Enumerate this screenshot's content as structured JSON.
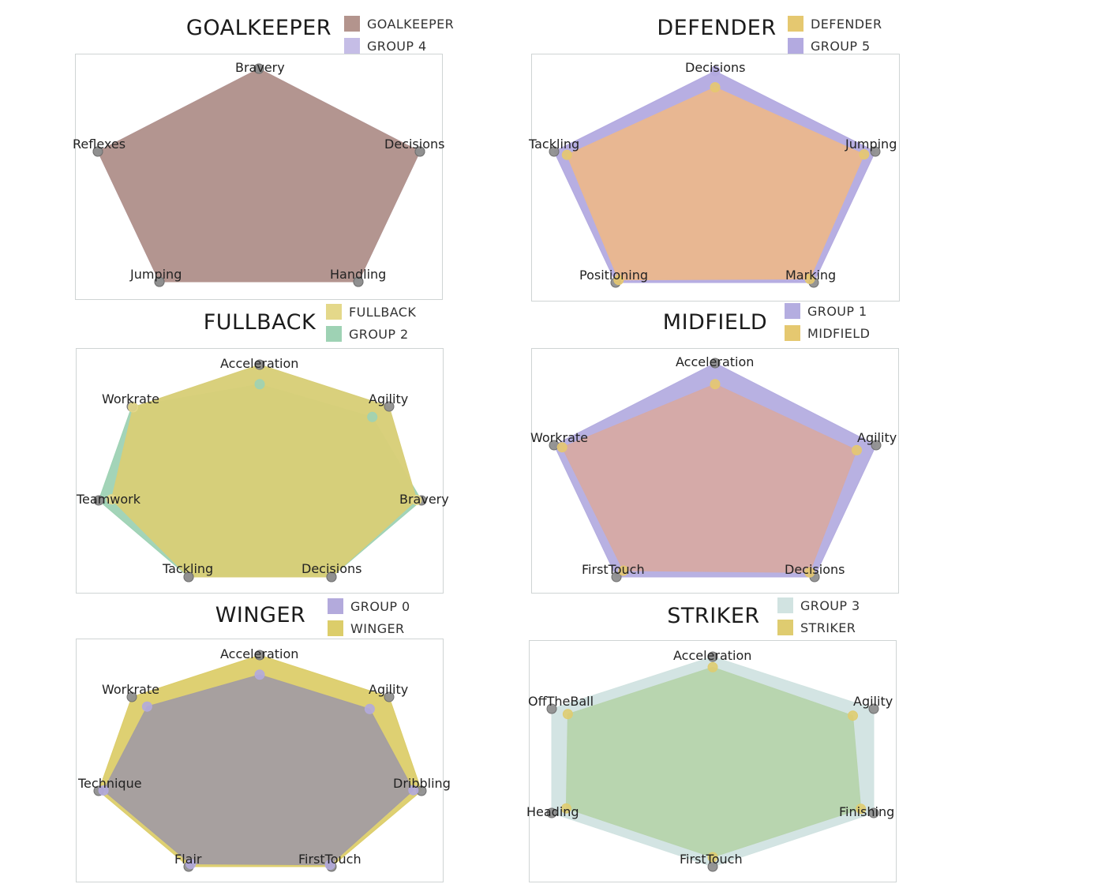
{
  "chart_data": [
    {
      "id": "goalkeeper",
      "type": "radar",
      "title": "GOALKEEPER",
      "axes": [
        "Bravery",
        "Decisions",
        "Handling",
        "Jumping",
        "Reflexes"
      ],
      "rlim": [
        0,
        1
      ],
      "legend_position": "top-right",
      "series": [
        {
          "name": "GOALKEEPER",
          "color": "#b3948d",
          "values": [
            1.0,
            1.0,
            1.0,
            1.0,
            1.0
          ]
        },
        {
          "name": "GROUP 4",
          "color": "#b8aee0",
          "values": [
            1.0,
            1.0,
            1.0,
            1.0,
            1.0
          ]
        }
      ],
      "draw_order": [
        "GROUP 4",
        "GOALKEEPER"
      ]
    },
    {
      "id": "defender",
      "type": "radar",
      "title": "DEFENDER",
      "axes": [
        "Decisions",
        "Jumping",
        "Marking",
        "Positioning",
        "Tackling"
      ],
      "rlim": [
        0,
        1
      ],
      "legend_position": "top-right",
      "series": [
        {
          "name": "DEFENDER",
          "color": "#e5c870",
          "values": [
            0.85,
            0.93,
            0.96,
            0.97,
            0.92
          ]
        },
        {
          "name": "GROUP 5",
          "color": "#b3aae0",
          "values": [
            0.98,
            1.0,
            1.0,
            1.0,
            1.0
          ]
        }
      ],
      "draw_order": [
        "GROUP 5",
        "DEFENDER"
      ],
      "overlap_color": "#e9b790"
    },
    {
      "id": "fullback",
      "type": "radar",
      "title": "FULLBACK",
      "axes": [
        "Acceleration",
        "Agility",
        "Bravery",
        "Decisions",
        "Tackling",
        "Teamwork",
        "Workrate"
      ],
      "rlim": [
        0,
        1
      ],
      "legend_position": "top-right",
      "series": [
        {
          "name": "FULLBACK",
          "color": "#e4d88a",
          "values": [
            1.0,
            1.0,
            0.97,
            1.0,
            1.0,
            0.92,
            0.99
          ]
        },
        {
          "name": "GROUP 2",
          "color": "#9ed2b4",
          "values": [
            0.84,
            0.87,
            1.0,
            1.0,
            1.0,
            1.0,
            1.0
          ]
        }
      ],
      "draw_order": [
        "GROUP 2",
        "FULLBACK"
      ],
      "overlap_color": "#d8ce78"
    },
    {
      "id": "midfield",
      "type": "radar",
      "title": "MIDFIELD",
      "axes": [
        "Acceleration",
        "Agility",
        "Decisions",
        "FirstTouch",
        "Workrate"
      ],
      "rlim": [
        0,
        1
      ],
      "legend_position": "top-right",
      "series": [
        {
          "name": "GROUP 1",
          "color": "#b4ade0",
          "values": [
            1.0,
            1.0,
            1.0,
            1.0,
            1.0
          ]
        },
        {
          "name": "MIDFIELD",
          "color": "#e5c870",
          "values": [
            0.83,
            0.88,
            0.95,
            0.93,
            0.95
          ]
        }
      ],
      "draw_order": [
        "GROUP 1",
        "MIDFIELD"
      ],
      "overlap_color": "#d6a9a6"
    },
    {
      "id": "winger",
      "type": "radar",
      "title": "WINGER",
      "axes": [
        "Acceleration",
        "Agility",
        "Dribbling",
        "FirstTouch",
        "Flair",
        "Technique",
        "Workrate"
      ],
      "rlim": [
        0,
        1
      ],
      "legend_position": "top-right",
      "series": [
        {
          "name": "GROUP 0",
          "color": "#b3aadc",
          "values": [
            0.84,
            0.85,
            0.95,
            0.98,
            0.97,
            0.97,
            0.88
          ]
        },
        {
          "name": "WINGER",
          "color": "#dccd6a",
          "values": [
            1.0,
            1.0,
            1.0,
            1.0,
            1.0,
            1.0,
            1.0
          ]
        }
      ],
      "draw_order": [
        "WINGER",
        "GROUP 0"
      ],
      "overlap_color": "#a59ea0"
    },
    {
      "id": "striker",
      "type": "radar",
      "title": "STRIKER",
      "axes": [
        "Acceleration",
        "Agility",
        "Finishing",
        "FirstTouch",
        "Heading",
        "OffTheBall"
      ],
      "rlim": [
        0,
        1
      ],
      "legend_position": "top-right",
      "series": [
        {
          "name": "GROUP 3",
          "color": "#d1e3e1",
          "values": [
            1.0,
            1.0,
            1.0,
            1.0,
            1.0,
            1.0
          ]
        },
        {
          "name": "STRIKER",
          "color": "#dfcc70",
          "values": [
            0.9,
            0.87,
            0.92,
            0.91,
            0.91,
            0.9
          ]
        }
      ],
      "draw_order": [
        "GROUP 3",
        "STRIKER"
      ],
      "overlap_color": "#b7d4ad"
    }
  ]
}
